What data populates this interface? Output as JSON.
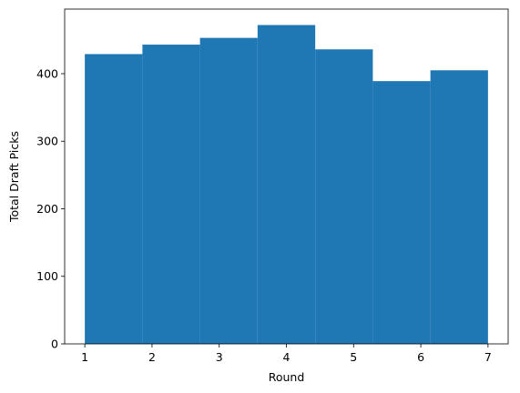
{
  "chart_data": {
    "type": "histogram",
    "bin_edges": [
      1,
      1.857,
      2.714,
      3.571,
      4.429,
      5.286,
      6.143,
      7
    ],
    "values": [
      429,
      443,
      453,
      472,
      436,
      389,
      405
    ],
    "xlabel": "Round",
    "ylabel": "Total Draft Picks",
    "xlim": [
      0.7,
      7.3
    ],
    "ylim": [
      0,
      495.6
    ],
    "x_ticks": [
      1,
      2,
      3,
      4,
      5,
      6,
      7
    ],
    "y_ticks": [
      0,
      100,
      200,
      300,
      400
    ],
    "grid": false,
    "colors": {
      "bar": "#1f77b4",
      "axis": "#000000"
    }
  }
}
